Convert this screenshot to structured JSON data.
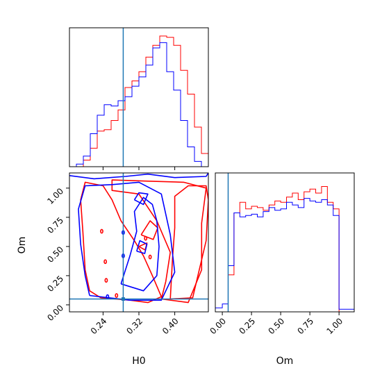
{
  "chart_data": {
    "type": "corner",
    "parameters": [
      "H0",
      "Om"
    ],
    "axis_labels": {
      "x_bottom_left": "H0",
      "y_left": "Om",
      "x_bottom_right": "Om"
    },
    "ranges": {
      "H0": [
        0.165,
        0.475
      ],
      "Om": [
        -0.06,
        1.13
      ]
    },
    "ticks": {
      "H0": {
        "values": [
          0.24,
          0.32,
          0.4
        ],
        "labels": [
          "0.24",
          "0.32",
          "0.40"
        ]
      },
      "Om": {
        "values": [
          0.0,
          0.25,
          0.5,
          0.75,
          1.0
        ],
        "labels": [
          "0.00",
          "0.25",
          "0.50",
          "0.75",
          "1.00"
        ]
      }
    },
    "truth": {
      "H0": 0.285,
      "Om": 0.05
    },
    "colors": {
      "red": "#ff0000",
      "blue": "#0000ff",
      "truth": "#1f77b4"
    },
    "series": [
      {
        "color": "#ff0000",
        "hist_H0": {
          "edges": [
            0.165,
            0.1805,
            0.196,
            0.2115,
            0.227,
            0.2425,
            0.258,
            0.2735,
            0.289,
            0.3045,
            0.32,
            0.3355,
            0.351,
            0.3665,
            0.382,
            0.3975,
            0.413,
            0.4285,
            0.444,
            0.4595,
            0.475
          ],
          "counts": [
            0,
            0,
            0.05,
            0.14,
            0.27,
            0.28,
            0.35,
            0.43,
            0.6,
            0.65,
            0.72,
            0.83,
            0.92,
            0.99,
            0.98,
            0.92,
            0.73,
            0.55,
            0.3,
            0.1
          ]
        },
        "hist_Om": {
          "edges": [
            -0.06,
            0.0,
            0.05,
            0.1,
            0.15,
            0.2,
            0.25,
            0.3,
            0.35,
            0.4,
            0.45,
            0.5,
            0.55,
            0.6,
            0.65,
            0.7,
            0.75,
            0.8,
            0.85,
            0.9,
            0.95,
            1.0,
            1.13
          ],
          "counts": [
            0,
            0,
            0.28,
            0.75,
            0.83,
            0.78,
            0.8,
            0.79,
            0.77,
            0.81,
            0.84,
            0.83,
            0.87,
            0.9,
            0.85,
            0.91,
            0.93,
            0.9,
            0.95,
            0.83,
            0.78,
            0
          ]
        }
      },
      {
        "color": "#0000ff",
        "hist_H0": {
          "edges": [
            0.165,
            0.1805,
            0.196,
            0.2115,
            0.227,
            0.2425,
            0.258,
            0.2735,
            0.289,
            0.3045,
            0.32,
            0.3355,
            0.351,
            0.3665,
            0.382,
            0.3975,
            0.413,
            0.4285,
            0.444,
            0.4595,
            0.475
          ],
          "counts": [
            0,
            0.02,
            0.08,
            0.25,
            0.39,
            0.47,
            0.46,
            0.5,
            0.53,
            0.61,
            0.68,
            0.77,
            0.9,
            0.94,
            0.72,
            0.58,
            0.35,
            0.15,
            0.04,
            0
          ]
        },
        "hist_Om": {
          "edges": [
            -0.06,
            0.0,
            0.05,
            0.1,
            0.15,
            0.2,
            0.25,
            0.3,
            0.35,
            0.4,
            0.45,
            0.5,
            0.55,
            0.6,
            0.65,
            0.7,
            0.75,
            0.8,
            0.85,
            0.9,
            0.95,
            1.0,
            1.13
          ],
          "counts": [
            0.03,
            0.06,
            0.35,
            0.75,
            0.72,
            0.73,
            0.74,
            0.72,
            0.76,
            0.79,
            0.77,
            0.78,
            0.83,
            0.81,
            0.79,
            0.86,
            0.84,
            0.83,
            0.85,
            0.81,
            0.73,
            0.02
          ]
        }
      }
    ],
    "contours": {
      "red": [
        [
          [
            0.235,
            0.06
          ],
          [
            0.3,
            0.04
          ],
          [
            0.34,
            0.02
          ],
          [
            0.37,
            0.07
          ],
          [
            0.35,
            0.25
          ],
          [
            0.33,
            0.42
          ],
          [
            0.31,
            0.55
          ],
          [
            0.28,
            0.72
          ],
          [
            0.26,
            0.9
          ],
          [
            0.24,
            1.02
          ],
          [
            0.2,
            1.05
          ],
          [
            0.19,
            0.9
          ],
          [
            0.195,
            0.62
          ],
          [
            0.2,
            0.3
          ],
          [
            0.21,
            0.12
          ],
          [
            0.235,
            0.06
          ]
        ],
        [
          [
            0.37,
            0.05
          ],
          [
            0.43,
            0.02
          ],
          [
            0.46,
            0.3
          ],
          [
            0.46,
            0.7
          ],
          [
            0.47,
            1.0
          ],
          [
            0.42,
            1.05
          ],
          [
            0.34,
            1.06
          ],
          [
            0.26,
            1.07
          ],
          [
            0.26,
            0.98
          ],
          [
            0.32,
            0.95
          ],
          [
            0.36,
            0.72
          ],
          [
            0.39,
            0.45
          ],
          [
            0.38,
            0.2
          ],
          [
            0.37,
            0.05
          ]
        ],
        [
          [
            0.39,
            0.05
          ],
          [
            0.44,
            0.06
          ],
          [
            0.47,
            0.55
          ],
          [
            0.475,
            0.9
          ],
          [
            0.47,
            1.02
          ],
          [
            0.43,
            1.02
          ],
          [
            0.4,
            0.93
          ],
          [
            0.4,
            0.66
          ],
          [
            0.395,
            0.4
          ],
          [
            0.39,
            0.05
          ]
        ],
        [
          [
            0.325,
            0.6
          ],
          [
            0.352,
            0.56
          ],
          [
            0.362,
            0.66
          ],
          [
            0.345,
            0.72
          ],
          [
            0.325,
            0.6
          ]
        ],
        [
          [
            0.32,
            0.5
          ],
          [
            0.334,
            0.47
          ],
          [
            0.338,
            0.53
          ],
          [
            0.32,
            0.5
          ]
        ]
      ],
      "blue": [
        [
          [
            0.21,
            0.08
          ],
          [
            0.3,
            0.04
          ],
          [
            0.37,
            0.04
          ],
          [
            0.4,
            0.28
          ],
          [
            0.39,
            0.6
          ],
          [
            0.37,
            0.95
          ],
          [
            0.32,
            1.05
          ],
          [
            0.26,
            1.03
          ],
          [
            0.2,
            1.02
          ],
          [
            0.185,
            0.82
          ],
          [
            0.19,
            0.52
          ],
          [
            0.2,
            0.25
          ],
          [
            0.21,
            0.08
          ]
        ],
        [
          [
            0.28,
            0.18
          ],
          [
            0.33,
            0.12
          ],
          [
            0.36,
            0.25
          ],
          [
            0.365,
            0.5
          ],
          [
            0.36,
            0.72
          ],
          [
            0.35,
            0.86
          ],
          [
            0.33,
            0.92
          ],
          [
            0.31,
            0.8
          ],
          [
            0.315,
            0.63
          ],
          [
            0.3,
            0.42
          ],
          [
            0.28,
            0.18
          ]
        ],
        [
          [
            0.315,
            0.46
          ],
          [
            0.333,
            0.44
          ],
          [
            0.338,
            0.52
          ],
          [
            0.322,
            0.55
          ],
          [
            0.315,
            0.46
          ]
        ],
        [
          [
            0.16,
            1.11
          ],
          [
            0.22,
            1.08
          ],
          [
            0.29,
            1.1
          ],
          [
            0.34,
            1.12
          ],
          [
            0.4,
            1.09
          ],
          [
            0.47,
            1.1
          ],
          [
            0.475,
            1.13
          ]
        ],
        [
          [
            0.31,
            0.9
          ],
          [
            0.33,
            0.86
          ],
          [
            0.34,
            0.95
          ],
          [
            0.32,
            0.96
          ],
          [
            0.31,
            0.9
          ]
        ]
      ]
    }
  }
}
